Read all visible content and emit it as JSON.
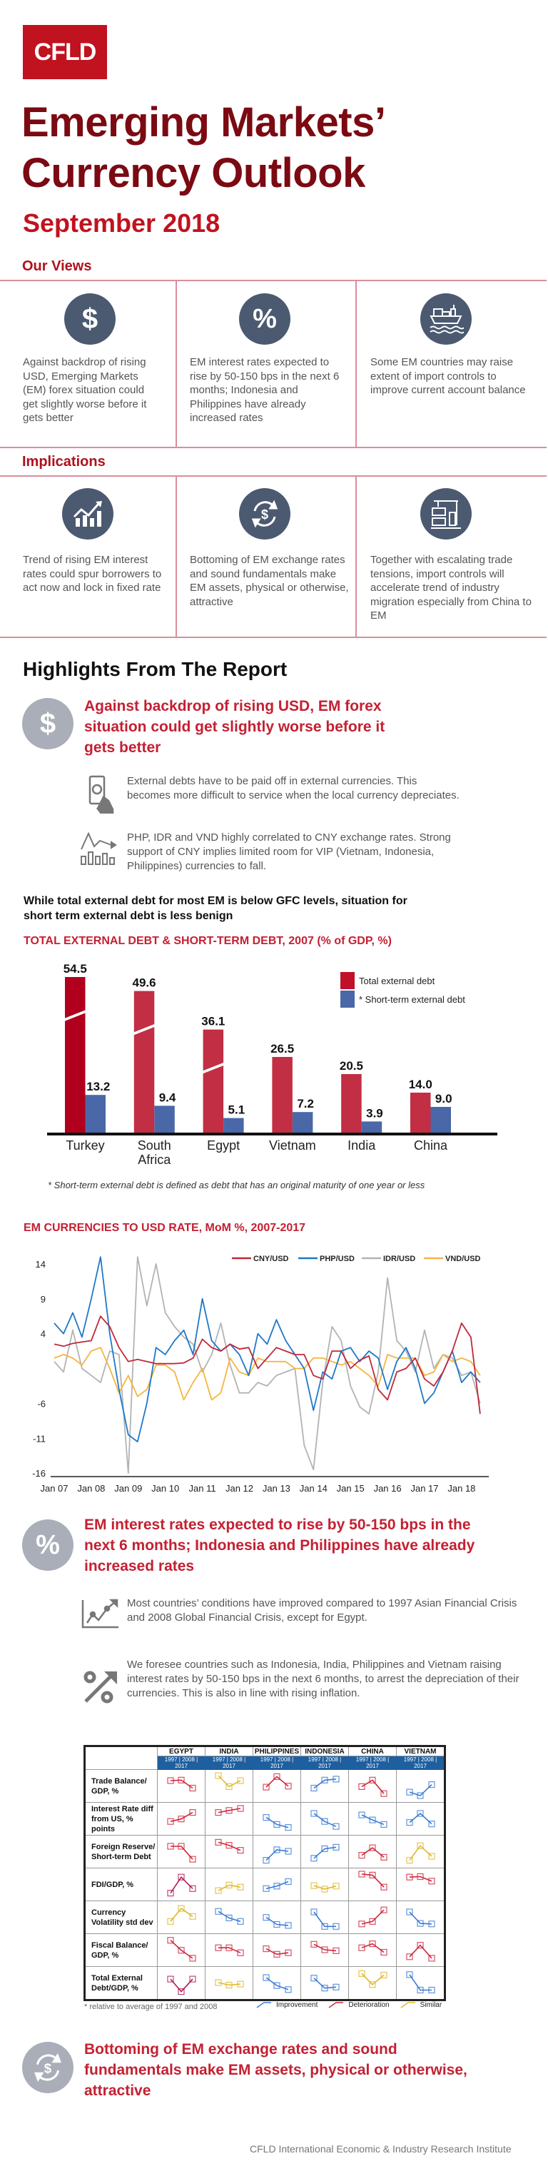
{
  "logo": "CFLD",
  "title_line1": "Emerging Markets’",
  "title_line2": "Currency Outlook",
  "date": "September 2018",
  "our_views": {
    "heading": "Our Views",
    "items": [
      {
        "icon": "dollar-icon",
        "text": "Against backdrop of rising USD, Emerging Markets (EM) forex situation could get slightly worse before it gets better"
      },
      {
        "icon": "percent-icon",
        "text": "EM interest rates expected to rise by 50-150 bps in the next 6 months; Indonesia and Philippines have already increased rates"
      },
      {
        "icon": "cargo-ship-icon",
        "text": "Some EM countries may raise extent of import controls to improve current account balance"
      }
    ]
  },
  "implications": {
    "heading": "Implications",
    "items": [
      {
        "icon": "rising-chart-icon",
        "text": "Trend of rising EM interest rates could spur borrowers to act now and lock in fixed rate"
      },
      {
        "icon": "currency-exchange-icon",
        "text": "Bottoming of EM exchange rates and sound fundamentals make EM assets, physical or otherwise, attractive"
      },
      {
        "icon": "crane-container-icon",
        "text": "Together with escalating trade tensions, import controls will accelerate trend of industry migration especially from China to EM"
      }
    ]
  },
  "highlights_heading": "Highlights From The Report",
  "highlight1": {
    "heading": "Against backdrop of rising USD, EM forex situation could get slightly worse before it gets better",
    "bullets": [
      {
        "icon": "hand-money-icon",
        "text": "External debts have to be paid off in external currencies. This becomes more difficult to service when the local currency depreciates."
      },
      {
        "icon": "chart-trend-icon",
        "text": "PHP, IDR and VND highly correlated to CNY exchange rates. Strong support of CNY implies limited room for VIP (Vietnam, Indonesia, Philippines) currencies to fall."
      }
    ],
    "subheading": "While total external debt for most EM is below GFC levels, situation for short term external debt is less benign"
  },
  "highlight2": {
    "heading": "EM interest rates expected to rise by 50-150 bps in the next 6 months; Indonesia and Philippines have already increased rates",
    "bullets": [
      {
        "icon": "growth-chart-icon",
        "text": "Most countries’ conditions have improved compared to 1997 Asian Financial Crisis and 2008 Global Financial Crisis, except for Egypt."
      },
      {
        "icon": "percent-up-icon",
        "text": "We foresee countries such as Indonesia, India, Philippines and Vietnam raising interest rates by 50-150 bps in the next 6 months, to arrest the depreciation of their currencies. This is also in line with rising inflation."
      }
    ]
  },
  "highlight3": {
    "heading": "Bottoming of EM exchange rates and sound fundamentals make EM assets, physical or otherwise, attractive"
  },
  "colors": {
    "title": "#7b0a12",
    "accent": "#c42032",
    "icon_circle": "#4b5a70",
    "highlight_circle": "#a9aeb8",
    "divider": "#d98e9c"
  },
  "chart_data": [
    {
      "type": "bar",
      "title": "TOTAL EXTERNAL DEBT & SHORT-TERM DEBT, 2007 (% of GDP, %)",
      "categories": [
        "Turkey",
        "South Africa",
        "Egypt",
        "Vietnam",
        "India",
        "China"
      ],
      "series": [
        {
          "name": "Total external debt",
          "color": "#c22e43",
          "values": [
            54.5,
            49.6,
            36.1,
            26.5,
            20.5,
            14.0
          ]
        },
        {
          "name": "* Short-term external debt",
          "color": "#4a68a8",
          "values": [
            13.2,
            9.4,
            5.1,
            7.2,
            3.9,
            9.0
          ]
        }
      ],
      "axis_breaks_on": [
        "Turkey",
        "South Africa",
        "Egypt"
      ],
      "legend": "top-right",
      "footnote": "* Short-term external debt is defined as debt that has an original maturity of one year or less"
    },
    {
      "type": "line",
      "title": "EM CURRENCIES TO USD RATE, MoM %, 2007-2017",
      "ylim": [
        -16,
        16
      ],
      "yticks": [
        14,
        9,
        4,
        -6,
        -11,
        -16
      ],
      "xticks": [
        "Jan 07",
        "Jan 08",
        "Jan 09",
        "Jan 10",
        "Jan 11",
        "Jan 12",
        "Jan 13",
        "Jan 14",
        "Jan 15",
        "Jan 16",
        "Jan 17",
        "Jan 18"
      ],
      "legend": "top-right",
      "x": [
        "2007-01",
        "2007-04",
        "2007-07",
        "2007-10",
        "2008-01",
        "2008-04",
        "2008-07",
        "2008-10",
        "2009-01",
        "2009-04",
        "2009-07",
        "2009-10",
        "2010-01",
        "2010-04",
        "2010-07",
        "2010-10",
        "2011-01",
        "2011-04",
        "2011-07",
        "2011-10",
        "2012-01",
        "2012-04",
        "2012-07",
        "2012-10",
        "2013-01",
        "2013-04",
        "2013-07",
        "2013-10",
        "2014-01",
        "2014-04",
        "2014-07",
        "2014-10",
        "2015-01",
        "2015-04",
        "2015-07",
        "2015-10",
        "2016-01",
        "2016-04",
        "2016-07",
        "2016-10",
        "2017-01",
        "2017-04",
        "2017-07",
        "2017-10",
        "2018-01",
        "2018-04",
        "2018-07"
      ],
      "series": [
        {
          "name": "CNY/USD",
          "color": "#c0283a",
          "values": [
            2.5,
            2.2,
            2.6,
            2.8,
            3.0,
            6.5,
            5.0,
            2.0,
            0.0,
            0.3,
            0.0,
            -0.3,
            -0.3,
            -0.3,
            -0.2,
            0.5,
            3.2,
            2.0,
            1.5,
            2.5,
            1.8,
            2.0,
            -1.0,
            0.5,
            2.0,
            1.5,
            1.0,
            1.0,
            -2.0,
            -2.5,
            1.5,
            1.5,
            -1.0,
            0.2,
            0.8,
            -4.0,
            -5.5,
            -1.5,
            -1.0,
            0.5,
            -2.5,
            -3.5,
            -1.5,
            1.5,
            5.5,
            3.5,
            -7.5
          ]
        },
        {
          "name": "PHP/USD",
          "color": "#1f78c8",
          "values": [
            5.5,
            4.0,
            7.0,
            3.5,
            9.0,
            15.0,
            4.0,
            -4.0,
            -10.5,
            -11.5,
            -6.0,
            2.0,
            1.0,
            3.0,
            4.5,
            1.0,
            9.0,
            3.0,
            1.5,
            2.5,
            1.0,
            -2.0,
            4.0,
            2.5,
            6.0,
            3.0,
            1.0,
            -1.0,
            -7.0,
            -1.5,
            -2.5,
            1.5,
            2.0,
            0.0,
            1.5,
            0.5,
            -4.0,
            0.0,
            2.0,
            -1.0,
            -6.0,
            -4.5,
            -1.5,
            1.5,
            -3.0,
            -1.5,
            -3.0
          ]
        },
        {
          "name": "IDR/USD",
          "color": "#b3b3b3",
          "values": [
            0.0,
            -1.5,
            4.5,
            -1.0,
            -2.0,
            -3.0,
            1.5,
            1.0,
            -16.0,
            15.0,
            8.0,
            14.0,
            7.0,
            5.0,
            3.5,
            2.5,
            -1.5,
            1.0,
            5.5,
            -0.5,
            -4.5,
            -4.5,
            -3.0,
            -3.5,
            -2.0,
            -1.5,
            -1.0,
            -12.0,
            -15.5,
            -3.0,
            5.0,
            3.0,
            -3.5,
            -6.5,
            -7.5,
            -1.5,
            12.0,
            3.0,
            1.5,
            -1.5,
            4.5,
            -1.0,
            1.0,
            0.5,
            -2.0,
            -1.5,
            -6.0
          ]
        },
        {
          "name": "VND/USD",
          "color": "#f5b540",
          "values": [
            0.5,
            1.0,
            0.5,
            -0.5,
            1.5,
            2.0,
            -1.0,
            -4.5,
            -2.0,
            -5.0,
            -4.0,
            -0.5,
            -0.5,
            -1.5,
            -5.5,
            -3.0,
            -1.0,
            -5.5,
            -4.5,
            0.5,
            -1.5,
            -2.0,
            0.5,
            0.0,
            0.0,
            0.0,
            -1.0,
            -1.0,
            0.5,
            0.5,
            0.0,
            -0.5,
            0.0,
            -1.0,
            -2.0,
            -3.5,
            1.0,
            0.5,
            0.5,
            0.5,
            -2.0,
            -1.5,
            1.0,
            0.0,
            0.5,
            0.0,
            -2.0
          ]
        }
      ]
    },
    {
      "type": "table",
      "countries": [
        "EGYPT",
        "INDIA",
        "PHILIPPINES",
        "INDONESIA",
        "CHINA",
        "VIETNAM"
      ],
      "years_label": "1997 | 2008 | 2017",
      "rows": [
        {
          "label": "Trade Balance/ GDP, %",
          "cells": [
            {
              "v": [
                3,
                3.1,
                1.5
              ],
              "color": "#d0263a"
            },
            {
              "v": [
                4,
                1.8,
                3
              ],
              "color": "#e0b82a"
            },
            {
              "v": [
                1.7,
                3.8,
                1.9
              ],
              "color": "#d0263a"
            },
            {
              "v": [
                1.5,
                3.1,
                3.3
              ],
              "color": "#3a7bd5"
            },
            {
              "v": [
                1.8,
                3.1,
                0.4
              ],
              "color": "#d0263a"
            },
            {
              "v": [
                0.7,
                0,
                2.2
              ],
              "color": "#3a7bd5"
            }
          ]
        },
        {
          "label": "Interest Rate diff from US, % points",
          "cells": [
            {
              "v": [
                1.4,
                1.9,
                3.2
              ],
              "color": "#d0263a"
            },
            {
              "v": [
                3.2,
                3.6,
                4
              ],
              "color": "#d0263a"
            },
            {
              "v": [
                2.2,
                0.8,
                0.2
              ],
              "color": "#3a7bd5"
            },
            {
              "v": [
                3,
                1.4,
                0.4
              ],
              "color": "#3a7bd5"
            },
            {
              "v": [
                2.7,
                1.7,
                0.8
              ],
              "color": "#3a7bd5"
            },
            {
              "v": [
                1.2,
                3,
                0.9
              ],
              "color": "#3a7bd5"
            }
          ]
        },
        {
          "label": "Foreign Reserve/ Short-term Debt",
          "cells": [
            {
              "v": [
                3,
                3,
                0.4
              ],
              "color": "#d0263a"
            },
            {
              "v": [
                3.8,
                3.2,
                2.2
              ],
              "color": "#d0263a"
            },
            {
              "v": [
                0.2,
                2.3,
                2
              ],
              "color": "#3a7bd5"
            },
            {
              "v": [
                0.6,
                2.5,
                2.8
              ],
              "color": "#3a7bd5"
            },
            {
              "v": [
                1.2,
                2.7,
                0.8
              ],
              "color": "#d0263a"
            },
            {
              "v": [
                0.2,
                3.1,
                1
              ],
              "color": "#e0b82a"
            }
          ]
        },
        {
          "label": "FDI/GDP, %",
          "cells": [
            {
              "v": [
                0.2,
                3.4,
                1.1
              ],
              "color": "#b0185a"
            },
            {
              "v": [
                0.7,
                1.8,
                1.4
              ],
              "color": "#e0b82a"
            },
            {
              "v": [
                1.1,
                1.6,
                2.5
              ],
              "color": "#3a7bd5"
            },
            {
              "v": [
                1.7,
                1,
                1.6
              ],
              "color": "#e0b82a"
            },
            {
              "v": [
                4,
                3.8,
                1.4
              ],
              "color": "#d0263a"
            },
            {
              "v": [
                3.4,
                3.5,
                2.6
              ],
              "color": "#d0263a"
            }
          ]
        },
        {
          "label": "Currency Volatility std dev",
          "cells": [
            {
              "v": [
                1.1,
                3.7,
                2.1
              ],
              "color": "#e0b82a"
            },
            {
              "v": [
                3.1,
                1.8,
                1.1
              ],
              "color": "#3a7bd5"
            },
            {
              "v": [
                1.9,
                0.5,
                0.3
              ],
              "color": "#3a7bd5"
            },
            {
              "v": [
                3,
                0.1,
                0.1
              ],
              "color": "#3a7bd5"
            },
            {
              "v": [
                0.6,
                1.1,
                3.4
              ],
              "color": "#d0263a"
            },
            {
              "v": [
                3,
                0.7,
                0.6
              ],
              "color": "#3a7bd5"
            }
          ]
        },
        {
          "label": "Fiscal Balance/ GDP, %",
          "cells": [
            {
              "v": [
                3.9,
                1.9,
                0.3
              ],
              "color": "#d0263a"
            },
            {
              "v": [
                2.4,
                2.4,
                1.4
              ],
              "color": "#d0263a"
            },
            {
              "v": [
                2.2,
                1.1,
                1.4
              ],
              "color": "#d0263a"
            },
            {
              "v": [
                3.1,
                2,
                1.8
              ],
              "color": "#d0263a"
            },
            {
              "v": [
                2.4,
                3.2,
                1.5
              ],
              "color": "#d0263a"
            },
            {
              "v": [
                0.6,
                2.9,
                0.3
              ],
              "color": "#d0263a"
            }
          ]
        },
        {
          "label": "Total External Debt/GDP, %",
          "cells": [
            {
              "v": [
                2.7,
                0.2,
                2.7
              ],
              "color": "#b0185a"
            },
            {
              "v": [
                2,
                1.5,
                1.7
              ],
              "color": "#e0b82a"
            },
            {
              "v": [
                3,
                1.4,
                0.6
              ],
              "color": "#3a7bd5"
            },
            {
              "v": [
                2.9,
                0.9,
                1.1
              ],
              "color": "#3a7bd5"
            },
            {
              "v": [
                3.8,
                1.6,
                3.5
              ],
              "color": "#e0b82a"
            },
            {
              "v": [
                3.6,
                0.5,
                0.5
              ],
              "color": "#3a7bd5"
            }
          ]
        }
      ],
      "footnote": "* relative to average of 1997 and 2008",
      "legend": [
        {
          "name": "Improvement",
          "color": "#3a7bd5"
        },
        {
          "name": "Deterioration",
          "color": "#d0263a"
        },
        {
          "name": "Similar",
          "color": "#e0b82a"
        }
      ]
    }
  ],
  "footer": "CFLD International Economic & Industry Research Institute"
}
